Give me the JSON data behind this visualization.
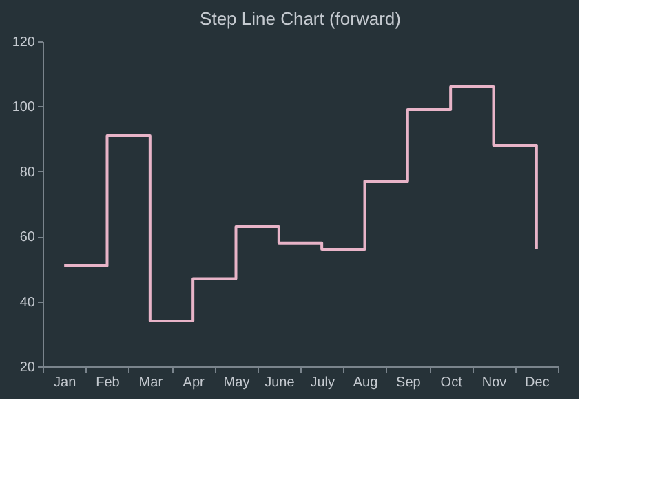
{
  "chart_data": {
    "type": "step",
    "title": "Step Line Chart (forward)",
    "categories": [
      "Jan",
      "Feb",
      "Mar",
      "Apr",
      "May",
      "June",
      "July",
      "Aug",
      "Sep",
      "Oct",
      "Nov",
      "Dec"
    ],
    "series": [
      {
        "color": "#e8b4c8",
        "values": [
          51,
          91,
          34,
          47,
          63,
          58,
          56,
          77,
          99,
          106,
          88,
          56
        ]
      }
    ],
    "ylim": [
      20,
      120
    ],
    "yticks": [
      20,
      40,
      60,
      80,
      100,
      120
    ],
    "grid": false,
    "legend": false,
    "marker": "none",
    "line_style": "solid"
  }
}
